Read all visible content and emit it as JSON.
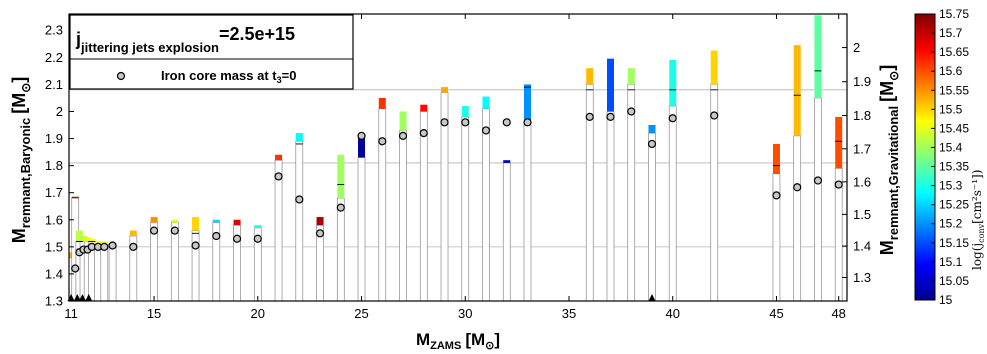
{
  "chart_data": {
    "type": "bar",
    "xlabel": "M",
    "xlabel_sub": "ZAMS",
    "xlabel_unit": "[M",
    "xlabel_unit_sub": "⊙",
    "xlabel_unit_close": "]",
    "ylabel_left": "M",
    "ylabel_left_sub": "remnant,Baryonic",
    "ylabel_left_unit": "[M",
    "ylabel_left_unit_sub": "⊙",
    "ylabel_left_unit_close": "]",
    "ylabel_right": "M",
    "ylabel_right_sub": "remnant,Gravitational",
    "ylabel_right_unit": "[M",
    "ylabel_right_unit_sub": "⊙",
    "ylabel_right_unit_close": "]",
    "colorbar_label": "log(j",
    "colorbar_label_sub": "conv",
    "colorbar_label_unit": "[cm²s⁻¹])",
    "legend_title_j": "j",
    "legend_title_sub": "jittering jets explosion",
    "legend_title_value": "=2.5e+15",
    "legend_entry": "Iron core mass at t",
    "legend_entry_sub": "3",
    "legend_entry_tail": "=0",
    "xlim": [
      10.9,
      48.4
    ],
    "ylim": [
      1.3,
      2.36
    ],
    "x_ticks": [
      11,
      15,
      20,
      25,
      30,
      35,
      40,
      45,
      48
    ],
    "y_ticks_left": [
      1.3,
      1.4,
      1.5,
      1.6,
      1.7,
      1.8,
      1.9,
      2,
      2.1,
      2.2,
      2.3
    ],
    "y_ticks_left_labels": [
      "1.3",
      "1.4",
      "1.5",
      "1.6",
      "1.7",
      "1.8",
      "1.9",
      "2",
      "2.1",
      "2.2",
      "2.3"
    ],
    "y_ticks_right_values": [
      1.3,
      1.4,
      1.5,
      1.6,
      1.7,
      1.8,
      1.9,
      2
    ],
    "y_ticks_right_labels": [
      "1.3",
      "1.4",
      "1.5",
      "1.6",
      "1.7",
      "1.8",
      "1.9",
      "2"
    ],
    "y_ticks_right_baryonic": [
      1.387,
      1.503,
      1.62,
      1.74,
      1.862,
      1.985,
      2.11,
      2.236
    ],
    "grid_lines": [
      1.5,
      1.81,
      2.08
    ],
    "colorbar_range": [
      15,
      15.75
    ],
    "colorbar_ticks": [
      "15.75",
      "15.7",
      "15.65",
      "15.6",
      "15.55",
      "15.5",
      "15.45",
      "15.4",
      "15.35",
      "15.3",
      "15.25",
      "15.2",
      "15.15",
      "15.1",
      "15.05",
      "15"
    ],
    "bars": [
      {
        "x": 11.0,
        "iron": null,
        "white": 1.46,
        "top": 1.48,
        "logj": 15.52
      },
      {
        "x": 11.2,
        "iron": 1.42,
        "white": 1.68,
        "top": 1.685,
        "logj": 15.72
      },
      {
        "x": 11.4,
        "iron": 1.48,
        "white": 1.52,
        "top": 1.56,
        "logj": 15.42
      },
      {
        "x": 11.6,
        "iron": 1.49,
        "white": 1.52,
        "top": 1.54,
        "logj": 15.42
      },
      {
        "x": 11.8,
        "iron": 1.49,
        "white": 1.52,
        "top": 1.535,
        "logj": 15.45
      },
      {
        "x": 12.0,
        "iron": 1.5,
        "white": 1.52,
        "top": 1.53,
        "logj": 15.47
      },
      {
        "x": 12.3,
        "iron": 1.5,
        "white": 1.51,
        "top": 1.52,
        "logj": 15.48
      },
      {
        "x": 12.6,
        "iron": 1.5,
        "white": 1.51,
        "top": 1.52,
        "logj": 15.47
      },
      {
        "x": 13.0,
        "iron": 1.505,
        "white": 1.51,
        "top": 1.515,
        "logj": 15.45
      },
      {
        "x": 14.0,
        "iron": 1.5,
        "white": 1.54,
        "top": 1.56,
        "logj": 15.52
      },
      {
        "x": 15.0,
        "iron": 1.56,
        "white": 1.59,
        "top": 1.61,
        "logj": 15.55
      },
      {
        "x": 16.0,
        "iron": 1.56,
        "white": 1.59,
        "top": 1.6,
        "logj": 15.45
      },
      {
        "x": 17.0,
        "iron": 1.505,
        "white": 1.56,
        "top": 1.61,
        "logj": 15.5
      },
      {
        "x": 18.0,
        "iron": 1.54,
        "white": 1.59,
        "top": 1.6,
        "logj": 15.25
      },
      {
        "x": 19.0,
        "iron": 1.53,
        "white": 1.58,
        "top": 1.6,
        "logj": 15.68
      },
      {
        "x": 20.0,
        "iron": 1.53,
        "white": 1.57,
        "top": 1.58,
        "logj": 15.3
      },
      {
        "x": 21.0,
        "iron": 1.76,
        "white": 1.82,
        "top": 1.84,
        "logj": 15.62
      },
      {
        "x": 22.0,
        "iron": 1.675,
        "white": 1.89,
        "top": 1.92,
        "logj": 15.28
      },
      {
        "x": 23.0,
        "iron": 1.55,
        "white": 1.58,
        "top": 1.61,
        "logj": 15.72
      },
      {
        "x": 24.0,
        "iron": 1.645,
        "white": 1.68,
        "top": 1.84,
        "logj": 15.4
      },
      {
        "x": 25.0,
        "iron": 1.91,
        "white": 1.83,
        "top": 1.91,
        "logj": 15.02
      },
      {
        "x": 26.0,
        "iron": 1.89,
        "white": 2.01,
        "top": 2.05,
        "logj": 15.62
      },
      {
        "x": 27.0,
        "iron": 1.91,
        "white": 1.93,
        "top": 2.0,
        "logj": 15.4
      },
      {
        "x": 28.0,
        "iron": 1.92,
        "white": 2.0,
        "top": 2.025,
        "logj": 15.65
      },
      {
        "x": 29.0,
        "iron": 1.96,
        "white": 2.07,
        "top": 2.09,
        "logj": 15.53
      },
      {
        "x": 30.0,
        "iron": 1.96,
        "white": 1.98,
        "top": 2.02,
        "logj": 15.3
      },
      {
        "x": 31.0,
        "iron": 1.93,
        "white": 2.01,
        "top": 2.055,
        "logj": 15.28
      },
      {
        "x": 32.0,
        "iron": 1.96,
        "white": 1.81,
        "top": 1.82,
        "logj": 15.05
      },
      {
        "x": 33.0,
        "iron": 1.96,
        "white": 1.95,
        "top": 2.1,
        "logj": 15.2
      },
      {
        "x": 36.0,
        "iron": 1.98,
        "white": 2.1,
        "top": 2.16,
        "logj": 15.52
      },
      {
        "x": 37.0,
        "iron": 1.98,
        "white": 2.0,
        "top": 2.195,
        "logj": 15.15
      },
      {
        "x": 38.0,
        "iron": 2.0,
        "white": 2.1,
        "top": 2.16,
        "logj": 15.4
      },
      {
        "x": 39.0,
        "iron": 1.88,
        "white": 1.92,
        "top": 1.95,
        "logj": 15.2
      },
      {
        "x": 40.0,
        "iron": 1.975,
        "white": 2.02,
        "top": 2.19,
        "logj": 15.3
      },
      {
        "x": 42.0,
        "iron": 1.985,
        "white": 2.1,
        "top": 2.225,
        "logj": 15.5
      },
      {
        "x": 45.0,
        "iron": 1.69,
        "white": 1.77,
        "top": 1.88,
        "logj": 15.6
      },
      {
        "x": 46.0,
        "iron": 1.72,
        "white": 1.91,
        "top": 2.245,
        "logj": 15.52
      },
      {
        "x": 47.0,
        "iron": 1.745,
        "white": 2.05,
        "top": 2.355,
        "logj": 15.35
      },
      {
        "x": 48.0,
        "iron": 1.73,
        "white": 1.79,
        "top": 1.98,
        "logj": 15.6
      }
    ],
    "inner_lines": [
      {
        "x": 11.4,
        "y": 1.52
      },
      {
        "x": 12.0,
        "y": 1.52
      },
      {
        "x": 17.0,
        "y": 1.55
      },
      {
        "x": 22.0,
        "y": 1.88
      },
      {
        "x": 24.0,
        "y": 1.73
      },
      {
        "x": 33.0,
        "y": 2.09
      },
      {
        "x": 36.0,
        "y": 2.08
      },
      {
        "x": 38.0,
        "y": 2.08
      },
      {
        "x": 40.0,
        "y": 2.08
      },
      {
        "x": 42.0,
        "y": 2.08
      },
      {
        "x": 45.0,
        "y": 1.8
      },
      {
        "x": 46.0,
        "y": 2.06
      },
      {
        "x": 47.0,
        "y": 2.15
      },
      {
        "x": 48.0,
        "y": 1.89
      }
    ],
    "triangles": [
      11.0,
      11.3,
      11.55,
      11.85,
      39.0
    ]
  }
}
